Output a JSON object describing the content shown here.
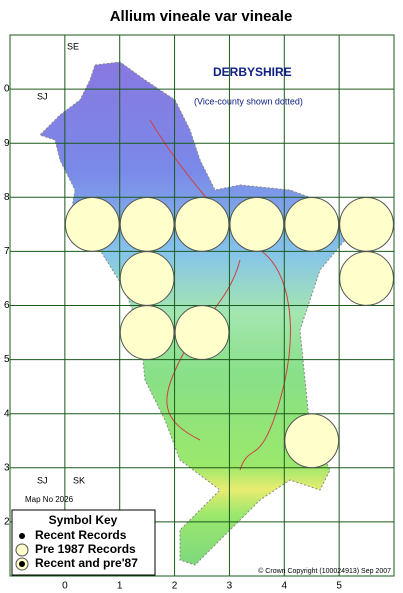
{
  "title": "Allium vineale var vineale",
  "county": "DERBYSHIRE",
  "county_note": "(Vice-county shown dotted)",
  "map_number": "Map No 2026",
  "copyright": "© Crown Copyright (100024913) Sep 2007",
  "grid_squares": [
    "SE",
    "SJ",
    "SJ",
    "SK"
  ],
  "key": {
    "title": "Symbol Key",
    "items": [
      "Recent Records",
      "Pre 1987 Records",
      "Recent and pre'87"
    ]
  },
  "map": {
    "xlim": [
      -1,
      6
    ],
    "ylim": [
      1,
      11
    ],
    "xticks": [
      0,
      1,
      2,
      3,
      4,
      5
    ],
    "yticks": [
      {
        "value": 10,
        "label": "0"
      },
      9,
      8,
      7,
      6,
      5,
      4,
      3,
      2
    ],
    "records": {
      "x": [
        0.5,
        1.5,
        2.5,
        3.5,
        4.5,
        5.5,
        1.5,
        5.5,
        1.5,
        2.5,
        4.5
      ],
      "y": [
        7.5,
        7.5,
        7.5,
        7.5,
        7.5,
        7.5,
        6.5,
        6.5,
        5.5,
        5.5,
        3.5
      ]
    }
  }
}
